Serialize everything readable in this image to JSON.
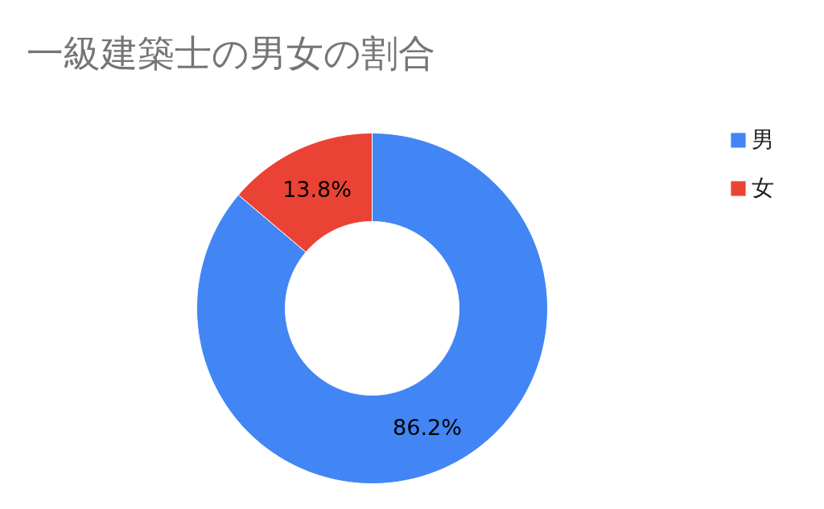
{
  "chart_data": {
    "type": "donut",
    "title": "一級建築士の男女の割合",
    "categories": [
      "男",
      "女"
    ],
    "values": [
      86.2,
      13.8
    ],
    "colors": [
      "#4285f4",
      "#ea4335"
    ],
    "value_labels": [
      "86.2%",
      "13.8%"
    ],
    "legend": "right"
  }
}
